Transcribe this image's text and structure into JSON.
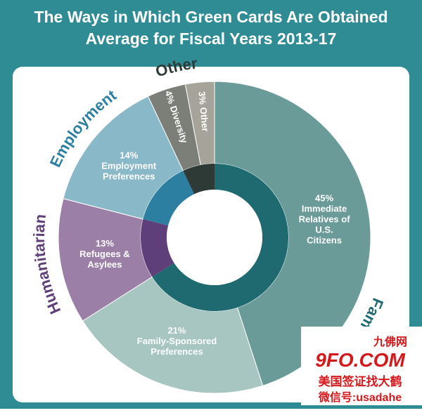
{
  "chart_data": {
    "type": "donut",
    "title": "The Ways in Which Green Cards Are Obtained",
    "subtitle": "Average for Fiscal Years 2013-17",
    "groups": [
      {
        "name": "Family",
        "color": "#1f6a70",
        "slices": [
          {
            "label": [
              "Immediate",
              "Relatives of",
              "U.S.",
              "Citizens"
            ],
            "value": 45,
            "value_label": "45%",
            "color": "#6a9b98"
          },
          {
            "label": [
              "Family-Sponsored",
              "Preferences"
            ],
            "value": 21,
            "value_label": "21%",
            "color": "#a7c6c2"
          }
        ]
      },
      {
        "name": "Humanitarian",
        "color": "#5e3f7a",
        "slices": [
          {
            "label": [
              "Refugees &",
              "Asylees"
            ],
            "value": 13,
            "value_label": "13%",
            "color": "#9b7fa7"
          }
        ]
      },
      {
        "name": "Employment",
        "color": "#2c7fa0",
        "slices": [
          {
            "label": [
              "Employment",
              "Preferences"
            ],
            "value": 14,
            "value_label": "14%",
            "color": "#89b8c8"
          }
        ]
      },
      {
        "name": "Other",
        "color": "#2e3a36",
        "slices": [
          {
            "label": [
              "Diversity"
            ],
            "value": 4,
            "value_label": "4%",
            "color": "#7b7f78"
          },
          {
            "label": [
              "Other"
            ],
            "value": 3,
            "value_label": "3%",
            "color": "#a6a49a"
          }
        ]
      }
    ]
  },
  "watermark": {
    "site_cn": "九佛网",
    "site": "9FO.COM",
    "line1": "美国签证找大鹤",
    "line2": "微信号:usadahe"
  }
}
